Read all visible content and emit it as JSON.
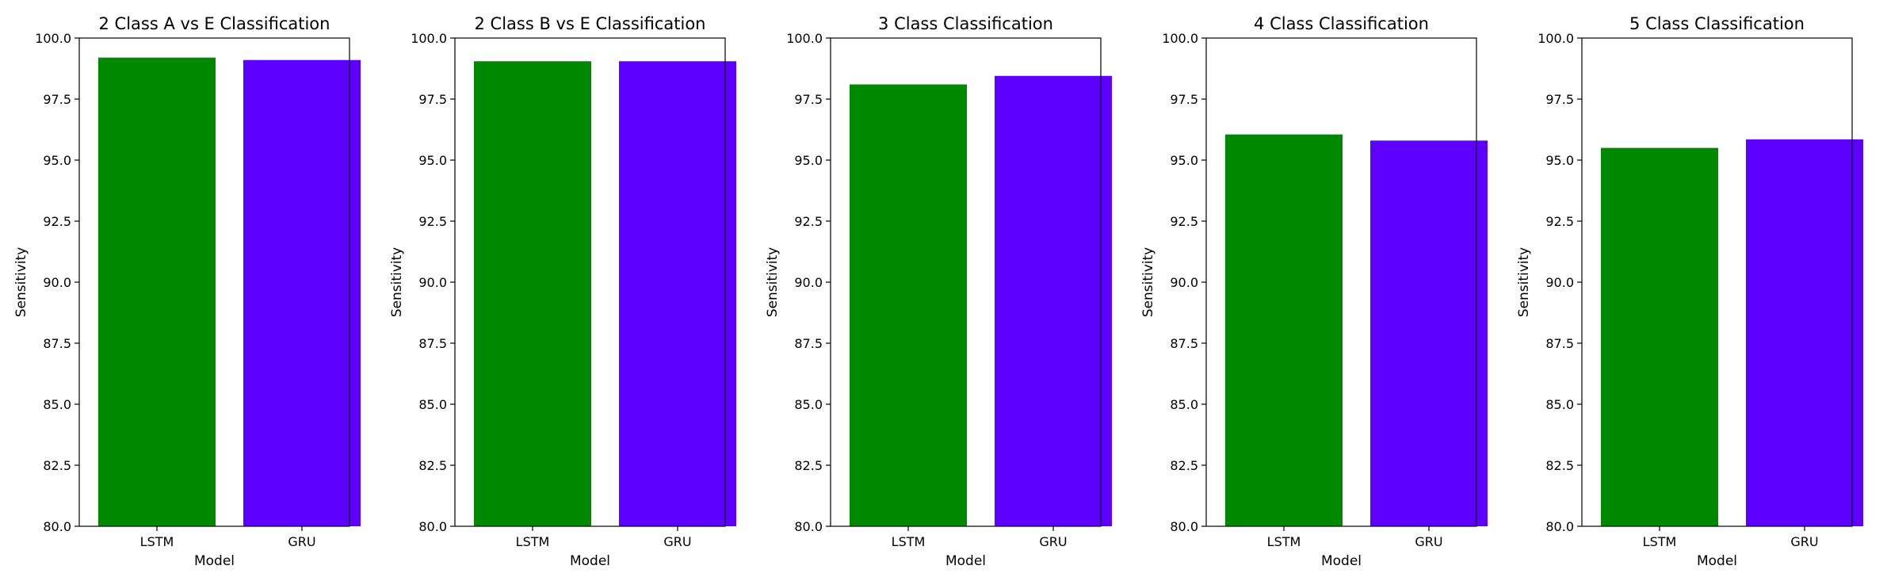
{
  "chart_data": [
    {
      "type": "bar",
      "title": "2 Class A vs E Classification",
      "xlabel": "Model",
      "ylabel": "Sensitivity",
      "categories": [
        "LSTM",
        "GRU"
      ],
      "values": [
        99.2,
        99.1
      ],
      "colors": [
        "#008800",
        "#5e00ff"
      ],
      "ylim": [
        80.0,
        100.0
      ],
      "yticks": [
        "80.0",
        "82.5",
        "85.0",
        "87.5",
        "90.0",
        "92.5",
        "95.0",
        "97.5",
        "100.0"
      ],
      "grid": false
    },
    {
      "type": "bar",
      "title": "2 Class B vs E Classification",
      "xlabel": "Model",
      "ylabel": "Sensitivity",
      "categories": [
        "LSTM",
        "GRU"
      ],
      "values": [
        99.05,
        99.05
      ],
      "colors": [
        "#008800",
        "#5e00ff"
      ],
      "ylim": [
        80.0,
        100.0
      ],
      "yticks": [
        "80.0",
        "82.5",
        "85.0",
        "87.5",
        "90.0",
        "92.5",
        "95.0",
        "97.5",
        "100.0"
      ],
      "grid": false
    },
    {
      "type": "bar",
      "title": "3 Class Classification",
      "xlabel": "Model",
      "ylabel": "Sensitivity",
      "categories": [
        "LSTM",
        "GRU"
      ],
      "values": [
        98.1,
        98.45
      ],
      "colors": [
        "#008800",
        "#5e00ff"
      ],
      "ylim": [
        80.0,
        100.0
      ],
      "yticks": [
        "80.0",
        "82.5",
        "85.0",
        "87.5",
        "90.0",
        "92.5",
        "95.0",
        "97.5",
        "100.0"
      ],
      "grid": false
    },
    {
      "type": "bar",
      "title": "4 Class Classification",
      "xlabel": "Model",
      "ylabel": "Sensitivity",
      "categories": [
        "LSTM",
        "GRU"
      ],
      "values": [
        96.05,
        95.8
      ],
      "colors": [
        "#008800",
        "#5e00ff"
      ],
      "ylim": [
        80.0,
        100.0
      ],
      "yticks": [
        "80.0",
        "82.5",
        "85.0",
        "87.5",
        "90.0",
        "92.5",
        "95.0",
        "97.5",
        "100.0"
      ],
      "grid": false
    },
    {
      "type": "bar",
      "title": "5 Class Classification",
      "xlabel": "Model",
      "ylabel": "Sensitivity",
      "categories": [
        "LSTM",
        "GRU"
      ],
      "values": [
        95.5,
        95.85
      ],
      "colors": [
        "#008800",
        "#5e00ff"
      ],
      "ylim": [
        80.0,
        100.0
      ],
      "yticks": [
        "80.0",
        "82.5",
        "85.0",
        "87.5",
        "90.0",
        "92.5",
        "95.0",
        "97.5",
        "100.0"
      ],
      "grid": false
    }
  ]
}
